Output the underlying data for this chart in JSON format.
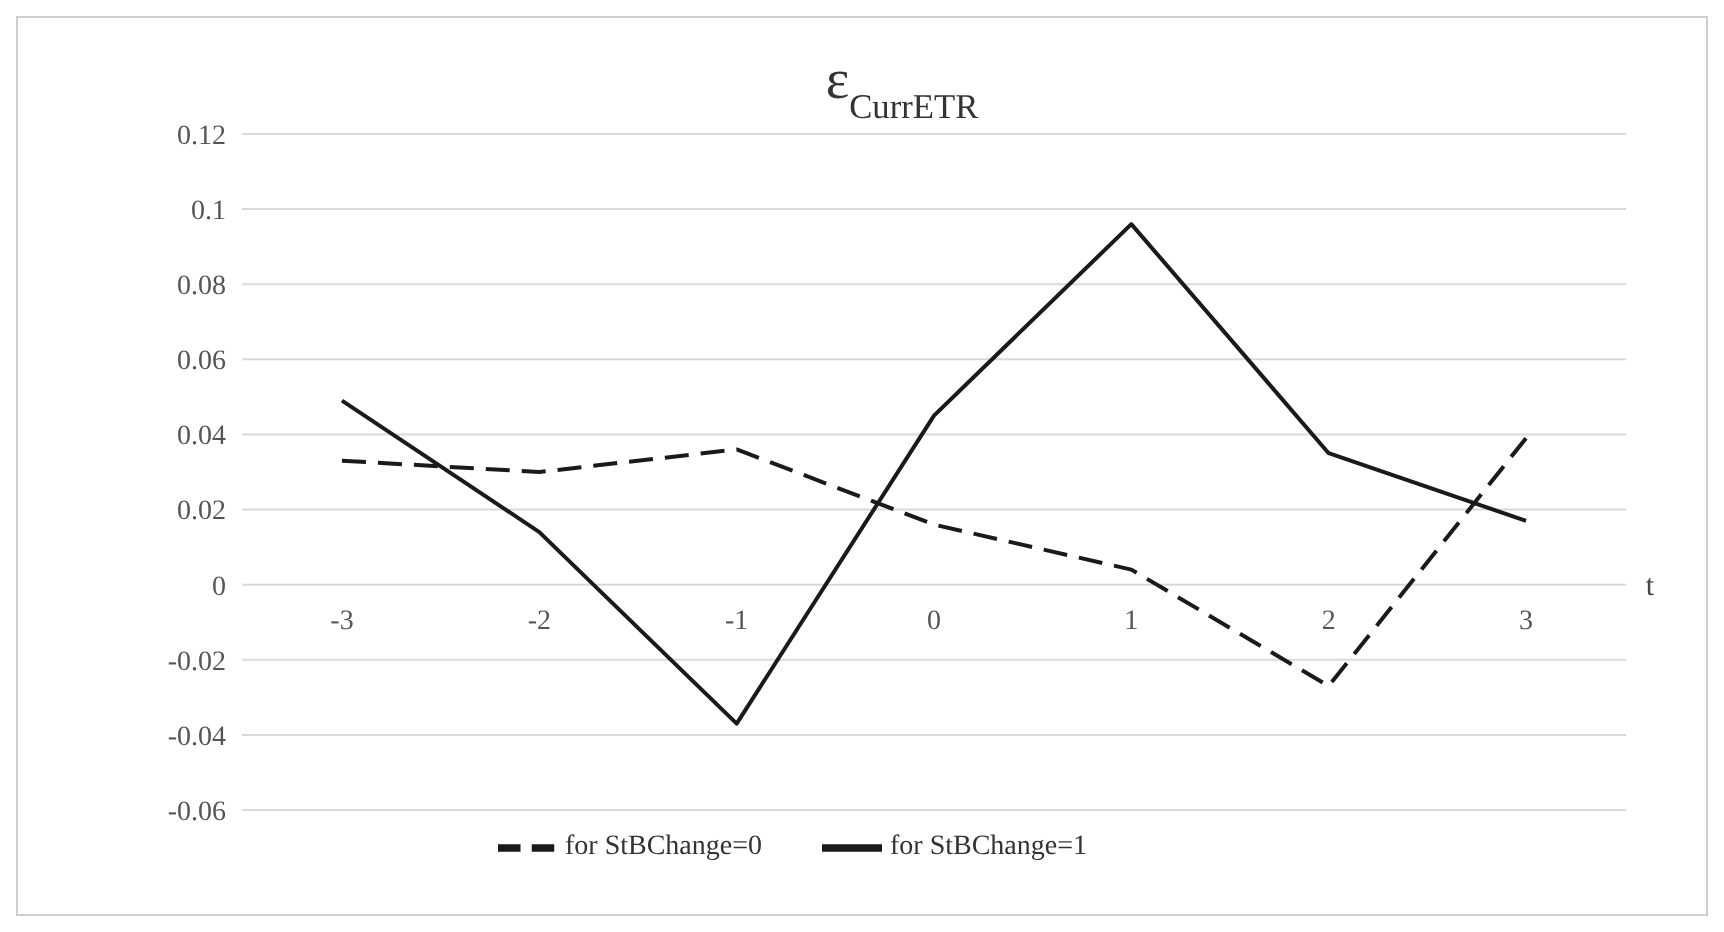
{
  "chart_data": {
    "type": "line",
    "title": "ε$_{CurrETR}$",
    "xlabel": "t",
    "categories": [
      "-3",
      "-2",
      "-1",
      "0",
      "1",
      "2",
      "3"
    ],
    "series": [
      {
        "name": "for StBChange=0",
        "color": "#1a1a1a",
        "line_style": "dashed",
        "values": [
          0.033,
          0.03,
          0.036,
          0.016,
          0.004,
          -0.027,
          0.039
        ]
      },
      {
        "name": "for StBChange=1",
        "color": "#1a1a1a",
        "line_style": "solid",
        "values": [
          0.049,
          0.014,
          -0.037,
          0.045,
          0.096,
          0.035,
          0.017
        ]
      }
    ],
    "ylim": [
      -0.06,
      0.12
    ],
    "yticks": [
      -0.06,
      -0.04,
      -0.02,
      0,
      0.02,
      0.04,
      0.06,
      0.08,
      0.1,
      0.12
    ],
    "grid": "y",
    "legend": "bottom",
    "marker": "none"
  }
}
